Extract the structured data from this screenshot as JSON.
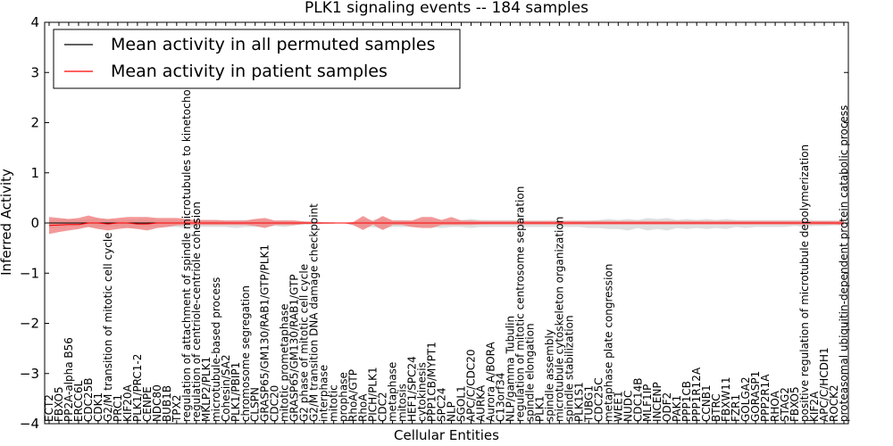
{
  "chart_data": {
    "type": "area",
    "title": "PLK1 signaling events -- 184 samples",
    "xlabel": "Cellular Entities",
    "ylabel": "Inferred Activity",
    "ylim": [
      -4,
      4
    ],
    "yticks": [
      4,
      3,
      2,
      1,
      0,
      -1,
      -2,
      -3,
      -4
    ],
    "ytick_labels": [
      "4",
      "3",
      "2",
      "1",
      "0",
      "−1",
      "−2",
      "−3",
      "−4"
    ],
    "grid": false,
    "legend_position": "top-left",
    "legend": [
      {
        "label": "Mean activity in all permuted samples",
        "color": "#000000"
      },
      {
        "label": "Mean activity in patient samples",
        "color": "#ff0000"
      }
    ],
    "colors": {
      "permuted_line": "#000000",
      "patient_line": "#ff0000",
      "permuted_band": "#d9d9d9",
      "patient_band": "#f08080"
    },
    "categories": [
      "ECT2",
      "FBXO5",
      "PP2A-alpha B56",
      "ERCC6L",
      "CDC25B",
      "CDK1",
      "G2/M transition of mitotic cell cycle",
      "PRC1",
      "KIF20A",
      "PLK1/PRC1-2",
      "CENPE",
      "NDC80",
      "BUB1B",
      "TPX2",
      "regulation of attachment of spindle microtubules to kinetochore",
      "regulation of centriole-centriole cohesion",
      "MKLP2/PLK1",
      "microtubule-based process",
      "Cohesin/SA2",
      "PLK1/PBIP1",
      "chromosome segregation",
      "CLSPN",
      "GRASP65/GM130/RAB1/GTP/PLK1",
      "CDC20",
      "mitotic prometaphase",
      "GRASP65/GM130/RAB1/GTP",
      "G2 phase of mitotic cell cycle",
      "G2/M transition DNA damage checkpoint",
      "interphase",
      "mitotic",
      "prophase",
      "RhoA/GTP",
      "RhoA",
      "PICH/PLK1",
      "CDC2",
      "metaphase",
      "mitosis",
      "HEF1/SPC24",
      "cytokinesis",
      "PPP1CB/MYPT1",
      "SPC24",
      "NLP",
      "SGOL1",
      "APC/C/CDC20",
      "AURKA",
      "Aurora A/BORA",
      "C13orf34",
      "NLP/gamma Tubulin",
      "regulation of mitotic centrosome separation",
      "spindle elongation",
      "PLK1",
      "spindle assembly",
      "microtubule cytoskeleton organization",
      "spindle stabilization",
      "PLK1S1",
      "TUBG1",
      "CDC25C",
      "metaphase plate congression",
      "WEE1",
      "NUDC",
      "CDC14B",
      "MLF1IP",
      "INCENP",
      "ODF2",
      "PAK1",
      "PPP1CB",
      "PPP1R12A",
      "CCNB1",
      "BTRC",
      "FBXW11",
      "FZR1",
      "GOLGA2",
      "GORASP1",
      "PPP2R1A",
      "RHOA",
      "STAG2",
      "FBXO5",
      "positive regulation of microtubule depolymerization",
      "KIF2A",
      "APC/C/HCDH1",
      "ROCK2",
      "proteasomal ubiquitin-dependent protein catabolic process"
    ],
    "series": [
      {
        "name": "Mean activity in all permuted samples",
        "values": [
          0,
          0,
          0,
          0,
          0,
          0,
          0,
          0,
          0,
          0,
          0,
          0,
          0,
          0,
          0,
          0,
          0,
          0,
          0,
          0,
          0,
          0,
          0,
          0,
          0,
          0,
          0,
          0,
          0,
          0,
          0,
          0,
          0,
          0,
          0,
          0,
          0,
          0,
          0,
          0,
          0,
          0,
          0,
          0,
          0,
          0,
          0,
          0,
          0,
          0,
          0,
          0,
          0,
          0,
          0,
          0,
          0,
          0,
          0,
          0,
          0,
          0,
          0,
          0,
          0,
          0,
          0,
          0,
          0,
          0,
          0,
          0,
          0,
          0,
          0,
          0,
          0,
          0,
          0,
          0,
          0,
          0
        ]
      },
      {
        "name": "Mean activity in patient samples",
        "values": [
          -0.05,
          -0.04,
          -0.03,
          -0.03,
          0.0,
          0.0,
          -0.02,
          0.0,
          0.0,
          -0.02,
          -0.02,
          0.0,
          0.0,
          0.0,
          0.0,
          0.0,
          0.0,
          0.0,
          0.0,
          0.0,
          0.0,
          0.0,
          0.0,
          0.0,
          0.0,
          0.0,
          0.0,
          0.0,
          0.0,
          0.0,
          0.0,
          0.0,
          0.0,
          0.0,
          0.0,
          0.0,
          0.0,
          0.0,
          0.0,
          0.0,
          0.0,
          0.0,
          0.0,
          0.0,
          0.0,
          0.0,
          0.0,
          0.0,
          0.0,
          0.0,
          0.0,
          0.0,
          0.0,
          0.0,
          0.0,
          0.0,
          0.0,
          0.0,
          0.0,
          0.0,
          0.0,
          0.0,
          0.0,
          0.0,
          0.0,
          0.0,
          0.0,
          0.0,
          0.0,
          0.0,
          0.0,
          0.0,
          0.0,
          0.0,
          0.0,
          0.0,
          0.0,
          0.0,
          0.0,
          0.0,
          0.0,
          0.0
        ]
      }
    ],
    "permuted_band": {
      "upper": [
        0.05,
        0.08,
        0.07,
        0.06,
        0.08,
        0.1,
        0.06,
        0.06,
        0.07,
        0.07,
        0.08,
        0.06,
        0.06,
        0.06,
        0.05,
        0.05,
        0.06,
        0.06,
        0.05,
        0.06,
        0.06,
        0.06,
        0.06,
        0.05,
        0.06,
        0.05,
        0.03,
        0.03,
        0.02,
        0.01,
        0.0,
        0.02,
        0.07,
        0.06,
        0.1,
        0.06,
        0.06,
        0.05,
        0.06,
        0.06,
        0.06,
        0.05,
        0.06,
        0.08,
        0.06,
        0.06,
        0.06,
        0.06,
        0.05,
        0.05,
        0.05,
        0.05,
        0.05,
        0.05,
        0.05,
        0.05,
        0.06,
        0.08,
        0.06,
        0.08,
        0.06,
        0.1,
        0.08,
        0.1,
        0.06,
        0.08,
        0.06,
        0.08,
        0.06,
        0.08,
        0.06,
        0.06,
        0.06,
        0.06,
        0.06,
        0.06,
        0.06,
        0.06,
        0.05,
        0.05,
        0.05,
        0.04
      ],
      "lower": [
        -0.1,
        -0.08,
        -0.07,
        -0.07,
        -0.08,
        -0.1,
        -0.08,
        -0.08,
        -0.1,
        -0.1,
        -0.08,
        -0.08,
        -0.08,
        -0.08,
        -0.1,
        -0.08,
        -0.08,
        -0.08,
        -0.08,
        -0.1,
        -0.08,
        -0.08,
        -0.08,
        -0.06,
        -0.08,
        -0.05,
        -0.03,
        -0.03,
        -0.02,
        -0.01,
        0.0,
        -0.05,
        -0.1,
        -0.08,
        -0.12,
        -0.08,
        -0.08,
        -0.08,
        -0.08,
        -0.08,
        -0.1,
        -0.08,
        -0.08,
        -0.1,
        -0.08,
        -0.08,
        -0.08,
        -0.08,
        -0.08,
        -0.08,
        -0.08,
        -0.08,
        -0.08,
        -0.08,
        -0.08,
        -0.1,
        -0.1,
        -0.12,
        -0.12,
        -0.15,
        -0.1,
        -0.15,
        -0.12,
        -0.15,
        -0.1,
        -0.12,
        -0.1,
        -0.12,
        -0.1,
        -0.12,
        -0.08,
        -0.1,
        -0.08,
        -0.08,
        -0.08,
        -0.08,
        -0.06,
        -0.08,
        -0.06,
        -0.06,
        -0.05,
        -0.05
      ]
    },
    "patient_band": {
      "upper": [
        0.12,
        0.1,
        0.08,
        0.1,
        0.15,
        0.1,
        0.08,
        0.1,
        0.12,
        0.12,
        0.12,
        0.1,
        0.1,
        0.1,
        0.08,
        0.06,
        0.06,
        0.06,
        0.05,
        0.05,
        0.05,
        0.08,
        0.1,
        0.05,
        0.05,
        0.05,
        0.03,
        0.02,
        0.01,
        0.01,
        0.0,
        0.02,
        0.14,
        0.03,
        0.14,
        0.05,
        0.05,
        0.05,
        0.12,
        0.12,
        0.06,
        0.12,
        0.05,
        0.05,
        0.04,
        0.04,
        0.04,
        0.04,
        0.04,
        0.04,
        0.04,
        0.04,
        0.04,
        0.04,
        0.04,
        0.04,
        0.04,
        0.04,
        0.04,
        0.04,
        0.04,
        0.04,
        0.04,
        0.04,
        0.04,
        0.04,
        0.04,
        0.04,
        0.04,
        0.04,
        0.04,
        0.04,
        0.04,
        0.04,
        0.04,
        0.04,
        0.04,
        0.04,
        0.04,
        0.04,
        0.04,
        0.04
      ],
      "lower": [
        -0.22,
        -0.18,
        -0.15,
        -0.12,
        -0.08,
        -0.12,
        -0.15,
        -0.12,
        -0.1,
        -0.12,
        -0.15,
        -0.1,
        -0.08,
        -0.05,
        -0.04,
        -0.04,
        -0.04,
        -0.04,
        -0.04,
        -0.04,
        -0.04,
        -0.06,
        -0.1,
        -0.04,
        -0.04,
        -0.04,
        -0.02,
        -0.02,
        -0.01,
        -0.01,
        0.0,
        -0.04,
        -0.14,
        -0.03,
        -0.14,
        -0.04,
        -0.04,
        -0.08,
        -0.1,
        -0.1,
        -0.04,
        -0.04,
        -0.04,
        -0.04,
        -0.03,
        -0.03,
        -0.03,
        -0.03,
        -0.03,
        -0.03,
        -0.03,
        -0.03,
        -0.03,
        -0.03,
        -0.03,
        -0.03,
        -0.03,
        -0.03,
        -0.03,
        -0.03,
        -0.03,
        -0.03,
        -0.03,
        -0.03,
        -0.03,
        -0.03,
        -0.03,
        -0.03,
        -0.03,
        -0.03,
        -0.03,
        -0.03,
        -0.03,
        -0.03,
        -0.03,
        -0.03,
        -0.03,
        -0.03,
        -0.03,
        -0.03,
        -0.03,
        -0.04
      ]
    }
  }
}
